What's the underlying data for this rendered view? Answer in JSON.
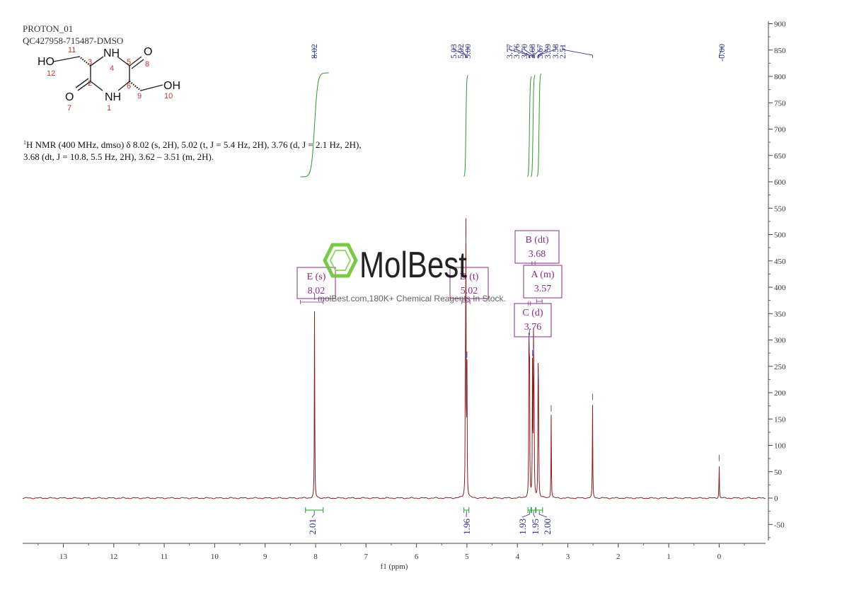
{
  "header": {
    "experiment": "PROTON_01",
    "sample_id": "QC427958-715487-DMSO"
  },
  "structure": {
    "labels": [
      {
        "text": "HO",
        "kind": "atom"
      },
      {
        "text": "NH",
        "kind": "atom"
      },
      {
        "text": "O",
        "kind": "atom"
      },
      {
        "text": "O",
        "kind": "atom"
      },
      {
        "text": "NH",
        "kind": "atom"
      },
      {
        "text": "OH",
        "kind": "atom"
      },
      {
        "text": "11",
        "kind": "num-red"
      },
      {
        "text": "3",
        "kind": "num-red"
      },
      {
        "text": "4",
        "kind": "num-red"
      },
      {
        "text": "5",
        "kind": "num-red"
      },
      {
        "text": "8",
        "kind": "num-red"
      },
      {
        "text": "12",
        "kind": "num-red"
      },
      {
        "text": "2",
        "kind": "num-red"
      },
      {
        "text": "6",
        "kind": "num-red"
      },
      {
        "text": "9",
        "kind": "num-red"
      },
      {
        "text": "10",
        "kind": "num-red"
      },
      {
        "text": "7",
        "kind": "num-red"
      },
      {
        "text": "1",
        "kind": "num-red"
      }
    ]
  },
  "nmr_summary": {
    "line1_sup": "1",
    "line1": "H NMR (400 MHz, dmso) δ 8.02 (s, 2H), 5.02 (t, J = 5.4 Hz, 2H), 3.76 (d, J = 2.1 Hz, 2H),",
    "line2": "3.68 (dt, J = 10.8, 5.5 Hz, 2H), 3.62 – 3.51 (m, 2H)."
  },
  "watermark": {
    "brand": "MolBest",
    "tagline": "molBest.com,180K+ Chemical Reagents In Stock."
  },
  "chart_data": {
    "type": "line",
    "xlabel": "f1 (ppm)",
    "xlim": [
      13.8,
      -0.9
    ],
    "ylim": [
      -85,
      905
    ],
    "x_ticks": [
      13,
      12,
      11,
      10,
      9,
      8,
      7,
      6,
      5,
      4,
      3,
      2,
      1,
      0
    ],
    "y_ticks": [
      900,
      850,
      800,
      750,
      700,
      650,
      600,
      550,
      500,
      450,
      400,
      350,
      300,
      250,
      200,
      150,
      100,
      50,
      0,
      -50
    ],
    "colors": {
      "spectrum": "#8b1a1a",
      "integral": "#2a9a2a",
      "peak_label": "#2a2a8a",
      "multiplet": "#8a2a8a"
    },
    "peaks": [
      {
        "ppm": 8.02,
        "height": 372
      },
      {
        "ppm": 5.03,
        "height": 260
      },
      {
        "ppm": 5.02,
        "height": 480
      },
      {
        "ppm": 5.0,
        "height": 262
      },
      {
        "ppm": 3.77,
        "height": 295
      },
      {
        "ppm": 3.76,
        "height": 305
      },
      {
        "ppm": 3.7,
        "height": 265
      },
      {
        "ppm": 3.68,
        "height": 270
      },
      {
        "ppm": 3.67,
        "height": 228
      },
      {
        "ppm": 3.59,
        "height": 222
      },
      {
        "ppm": 3.58,
        "height": 210
      },
      {
        "ppm": 3.33,
        "height": 160
      },
      {
        "ppm": 2.51,
        "height": 182
      },
      {
        "ppm": 0.0,
        "height": 66
      }
    ],
    "peak_labels": [
      "8.02",
      "5.03",
      "5.02",
      "5.00",
      "3.77",
      "3.76",
      "3.70",
      "3.68",
      "3.67",
      "3.59",
      "3.58",
      "2.51",
      "-0.00"
    ],
    "peak_label_groups": [
      {
        "labels": [
          "8.02"
        ],
        "ppm": [
          8.02
        ]
      },
      {
        "labels": [
          "5.03",
          "5.02",
          "5.00"
        ],
        "ppm": [
          5.03,
          5.02,
          5.0
        ]
      },
      {
        "labels": [
          "3.77",
          "3.76",
          "3.70",
          "3.68",
          "3.67",
          "3.59",
          "3.58",
          "2.51"
        ],
        "ppm": [
          3.77,
          3.76,
          3.7,
          3.68,
          3.67,
          3.59,
          3.58,
          2.51
        ]
      },
      {
        "labels": [
          "-0.00"
        ],
        "ppm": [
          0.0
        ]
      }
    ],
    "multiplets": [
      {
        "letter": "E",
        "type": "s",
        "shift": "8.02",
        "ppm": 8.02,
        "range": [
          8.3,
          7.85
        ]
      },
      {
        "letter": "D",
        "type": "t",
        "shift": "5.02",
        "ppm": 5.02,
        "range": [
          5.1,
          4.94
        ]
      },
      {
        "letter": "B",
        "type": "dt",
        "shift": "3.68",
        "ppm": 3.68,
        "range": [
          3.71,
          3.65
        ]
      },
      {
        "letter": "A",
        "type": "m",
        "shift": "3.57",
        "ppm": 3.57,
        "range": [
          3.62,
          3.51
        ]
      },
      {
        "letter": "C",
        "type": "d",
        "shift": "3.76",
        "ppm": 3.76,
        "range": [
          3.78,
          3.74
        ]
      }
    ],
    "integrals": [
      {
        "value": "2.01",
        "from": 8.2,
        "to": 7.85
      },
      {
        "value": "1.96",
        "from": 5.06,
        "to": 4.96
      },
      {
        "value": "1.93",
        "from": 3.79,
        "to": 3.73
      },
      {
        "value": "1.95",
        "from": 3.72,
        "to": 3.64
      },
      {
        "value": "2.00",
        "from": 3.63,
        "to": 3.5
      }
    ]
  }
}
